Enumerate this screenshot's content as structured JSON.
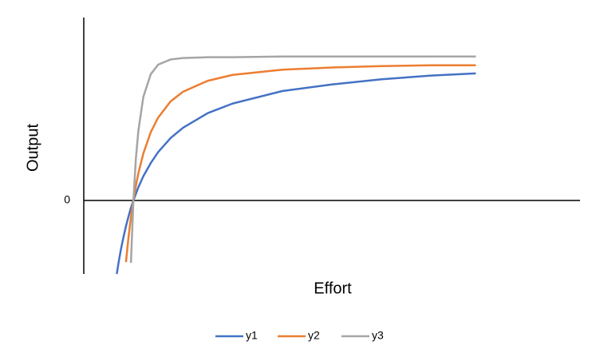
{
  "chart_data": {
    "type": "line",
    "x_label": "Effort",
    "y_label": "Output",
    "x": [
      0.665,
      0.7,
      0.75,
      0.8,
      0.85,
      0.9,
      0.95,
      1,
      1.05,
      1.1,
      1.2,
      1.35,
      1.5,
      1.75,
      2,
      2.5,
      3,
      4,
      5,
      6,
      7,
      7.9
    ],
    "series": [
      {
        "name": "y1",
        "color": "#4472c4",
        "values": [
          -1.0,
          -0.85,
          -0.66,
          -0.5,
          -0.35,
          -0.22,
          -0.1,
          0,
          0.09,
          0.18,
          0.33,
          0.51,
          0.66,
          0.85,
          0.99,
          1.19,
          1.32,
          1.49,
          1.58,
          1.65,
          1.7,
          1.73
        ]
      },
      {
        "name": "y2",
        "color": "#ed7d31",
        "values": [
          null,
          null,
          null,
          null,
          -0.84,
          -0.51,
          -0.23,
          0,
          0.2,
          0.37,
          0.64,
          0.93,
          1.13,
          1.35,
          1.48,
          1.63,
          1.71,
          1.78,
          1.81,
          1.83,
          1.84,
          1.84
        ]
      },
      {
        "name": "y3",
        "color": "#a5a5a5",
        "values": [
          null,
          null,
          null,
          null,
          null,
          null,
          -0.85,
          0,
          0.57,
          0.95,
          1.41,
          1.72,
          1.85,
          1.92,
          1.94,
          1.95,
          1.95,
          1.96,
          1.96,
          1.96,
          1.96,
          1.96
        ]
      }
    ],
    "xlim": [
      0,
      10
    ],
    "ylim": [
      -1,
      2.49
    ],
    "yticks": [
      0
    ],
    "legend": "bottom"
  }
}
